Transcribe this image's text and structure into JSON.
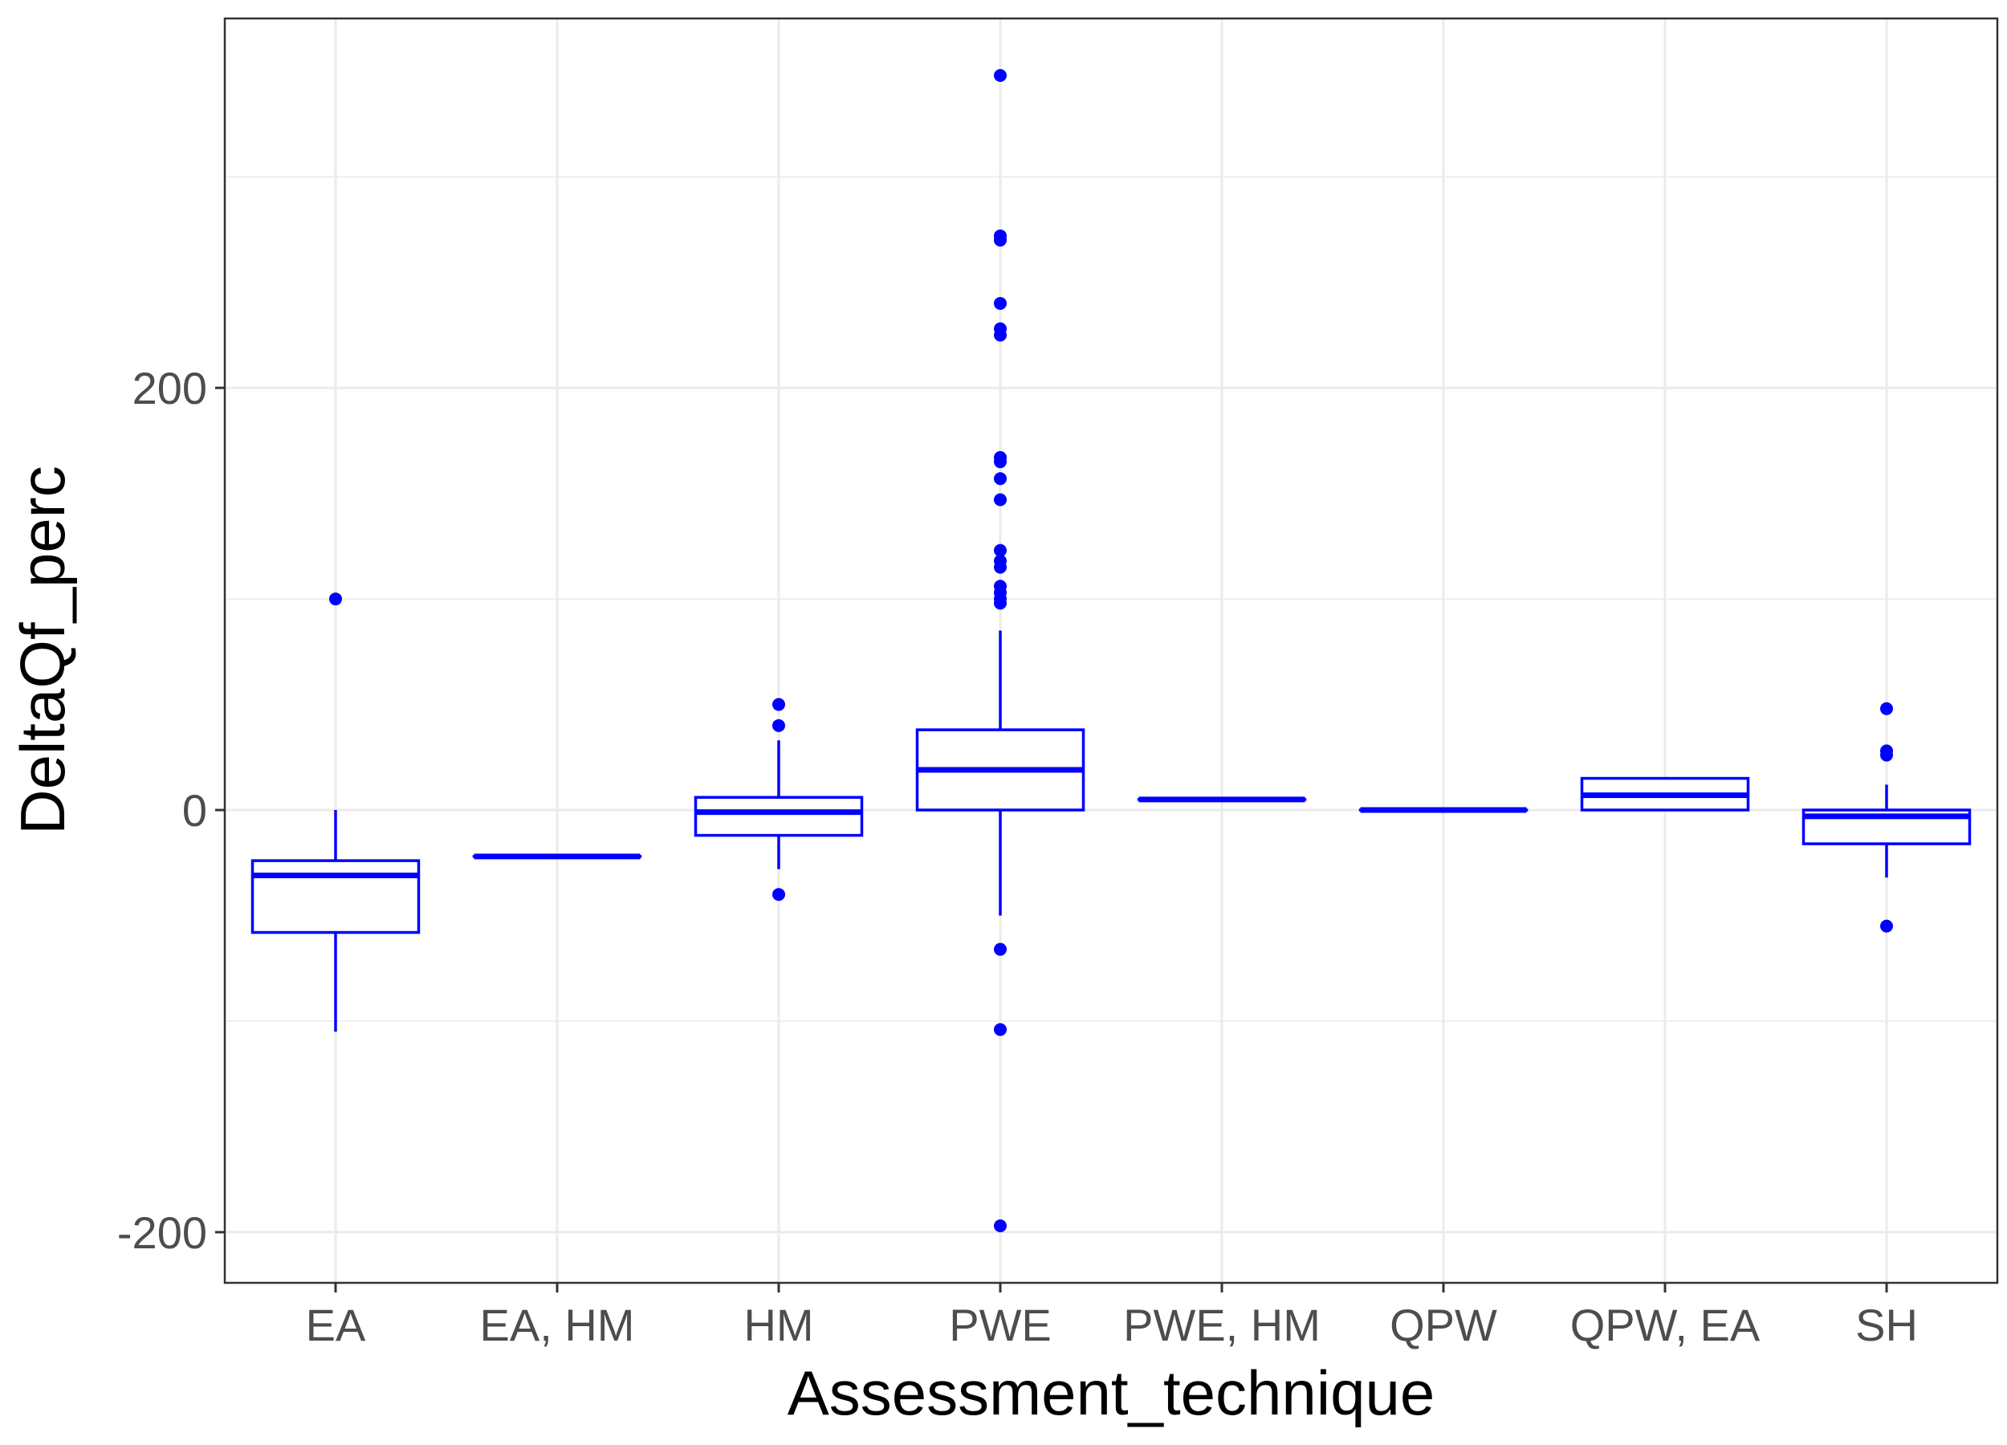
{
  "chart_data": {
    "type": "box",
    "title": "",
    "xlabel": "Assessment_technique",
    "ylabel": "DeltaQf_perc",
    "ylim": [
      -224,
      375
    ],
    "yticks": [
      -200,
      0,
      200
    ],
    "ytick_labels": [
      "-200",
      "0",
      "200"
    ],
    "grid": true,
    "legend": "none",
    "color": "#0000ff",
    "categories": [
      "EA",
      "EA, HM",
      "HM",
      "PWE",
      "PWE, HM",
      "QPW",
      "QPW, EA",
      "SH"
    ],
    "boxes": [
      {
        "category": "EA",
        "whisker_low": -105,
        "q1": -58,
        "median": -31,
        "q3": -24,
        "whisker_high": 0,
        "outliers": [
          100
        ]
      },
      {
        "category": "EA, HM",
        "whisker_low": -22,
        "q1": -22,
        "median": -22,
        "q3": -22,
        "whisker_high": -22,
        "outliers": []
      },
      {
        "category": "HM",
        "whisker_low": -28,
        "q1": -12,
        "median": -1,
        "q3": 6,
        "whisker_high": 33,
        "outliers": [
          50,
          40,
          -40
        ]
      },
      {
        "category": "PWE",
        "whisker_low": -50,
        "q1": 0,
        "median": 19,
        "q3": 38,
        "whisker_high": 85,
        "outliers": [
          348,
          272,
          270,
          240,
          228,
          225,
          167,
          165,
          157,
          147,
          123,
          118,
          115,
          106,
          103,
          100,
          98,
          -66,
          -104,
          -197
        ]
      },
      {
        "category": "PWE, HM",
        "whisker_low": 5,
        "q1": 5,
        "median": 5,
        "q3": 5,
        "whisker_high": 5,
        "outliers": []
      },
      {
        "category": "QPW",
        "whisker_low": 0,
        "q1": 0,
        "median": 0,
        "q3": 0,
        "whisker_high": 0,
        "outliers": []
      },
      {
        "category": "QPW, EA",
        "whisker_low": 0,
        "q1": 0,
        "median": 7,
        "q3": 15,
        "whisker_high": 15,
        "outliers": []
      },
      {
        "category": "SH",
        "whisker_low": -32,
        "q1": -16,
        "median": -3,
        "q3": 0,
        "whisker_high": 12,
        "outliers": [
          48,
          28,
          26,
          -55
        ]
      }
    ]
  }
}
